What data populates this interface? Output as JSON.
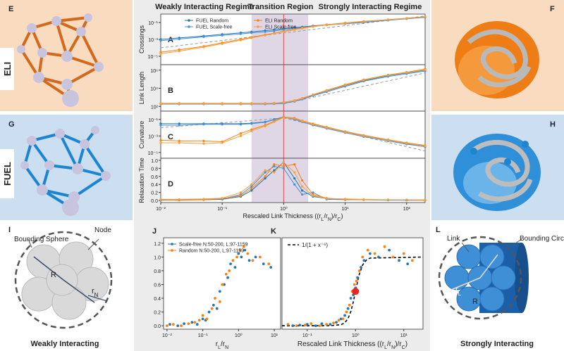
{
  "regimes": [
    "Weakly Interacting Regime",
    "Transition Region",
    "Strongly Interacting Regime"
  ],
  "tabs": [
    "ELI",
    "FUEL"
  ],
  "network_panels": [
    "E",
    "F",
    "G",
    "H"
  ],
  "sphere_diagram": {
    "letter": "I",
    "bounding": "Bounding Sphere",
    "node": "Node",
    "radius": "R",
    "node_radius": [
      "r",
      "N"
    ],
    "caption": "Weakly Interacting"
  },
  "cylinder_diagram": {
    "letter": "L",
    "link": "Link",
    "bounding": "Bounding Circle",
    "link_radius": [
      "r",
      "L"
    ],
    "radius": "R",
    "caption": "Strongly Interacting"
  },
  "chart_data": [
    {
      "type": "line",
      "panel": "A",
      "ylabel": "Crossings",
      "log_x": true,
      "log_y": true,
      "legend": "upper left",
      "xlim": [
        0.01,
        200
      ],
      "ylim": [
        1e-06,
        1
      ],
      "yticks": [
        {
          "value": 0.1,
          "label": "10⁻¹"
        },
        {
          "value": 0.001,
          "label": "10⁻³"
        },
        {
          "value": 1e-05,
          "label": "10⁻⁵"
        }
      ],
      "shaded_span": [
        0.3,
        2.5
      ],
      "vline": 1,
      "x": [
        0.01,
        0.02,
        0.05,
        0.1,
        0.2,
        0.3,
        0.5,
        0.7,
        1,
        1.5,
        2,
        3,
        5,
        10,
        20,
        50,
        100,
        200
      ],
      "series": [
        {
          "name": "FUEL Random",
          "color": "#1f77b4",
          "values": [
            0.001,
            0.0015,
            0.0025,
            0.004,
            0.006,
            0.008,
            0.011,
            0.014,
            0.018,
            0.025,
            0.03,
            0.04,
            0.055,
            0.08,
            0.12,
            0.2,
            0.3,
            0.45
          ]
        },
        {
          "name": "FUEL Scale-free",
          "color": "#4a90d9",
          "values": [
            0.0007,
            0.0011,
            0.002,
            0.003,
            0.0045,
            0.006,
            0.008,
            0.01,
            0.014,
            0.02,
            0.025,
            0.035,
            0.05,
            0.07,
            0.1,
            0.18,
            0.27,
            0.4
          ]
        },
        {
          "name": "ELI Random",
          "color": "#ff7f0e",
          "values": [
            3e-05,
            6e-05,
            0.00015,
            0.0004,
            0.001,
            0.0018,
            0.0035,
            0.0055,
            0.009,
            0.016,
            0.023,
            0.035,
            0.055,
            0.09,
            0.14,
            0.22,
            0.32,
            0.5
          ]
        },
        {
          "name": "ELI Scale-free",
          "color": "#f5a040",
          "values": [
            2e-05,
            4e-05,
            0.00012,
            0.0003,
            0.0008,
            0.0015,
            0.003,
            0.005,
            0.008,
            0.014,
            0.02,
            0.032,
            0.05,
            0.08,
            0.13,
            0.21,
            0.3,
            0.48
          ]
        }
      ],
      "fit": {
        "x": [
          0.01,
          200
        ],
        "values": [
          0.0001,
          0.6
        ]
      }
    },
    {
      "type": "line",
      "panel": "B",
      "ylabel": "Link Length",
      "log_x": true,
      "log_y": true,
      "xlim": [
        0.01,
        200
      ],
      "ylim": [
        30,
        4000000
      ],
      "yticks": [
        {
          "value": 100,
          "label": "10²"
        },
        {
          "value": 10000,
          "label": "10⁴"
        },
        {
          "value": 1000000,
          "label": "10⁶"
        }
      ],
      "shaded_span": [
        0.3,
        2.5
      ],
      "vline": 1,
      "x": [
        0.01,
        0.02,
        0.05,
        0.1,
        0.2,
        0.3,
        0.5,
        0.7,
        1,
        1.5,
        2,
        3,
        5,
        10,
        20,
        50,
        100,
        200
      ],
      "series": [
        {
          "color": "#1f77b4",
          "values": [
            200,
            200,
            200,
            200,
            200,
            200,
            200,
            210,
            250,
            400,
            700,
            1800,
            5000,
            20000,
            70000,
            250000,
            500000,
            1000000
          ]
        },
        {
          "color": "#4a90d9",
          "values": [
            180,
            180,
            180,
            180,
            180,
            180,
            180,
            190,
            220,
            350,
            600,
            1500,
            4000,
            16000,
            60000,
            200000,
            400000,
            800000
          ]
        },
        {
          "color": "#ff7f0e",
          "values": [
            220,
            220,
            220,
            220,
            220,
            220,
            220,
            230,
            280,
            450,
            800,
            2000,
            6000,
            25000,
            90000,
            300000,
            600000,
            1300000
          ]
        },
        {
          "color": "#f5a040",
          "values": [
            200,
            200,
            200,
            200,
            200,
            200,
            210,
            220,
            260,
            420,
            750,
            1900,
            5500,
            22000,
            80000,
            280000,
            550000,
            1100000
          ]
        }
      ],
      "fit": {
        "x": [
          0.01,
          1,
          200
        ],
        "values": [
          200,
          200,
          500000
        ]
      }
    },
    {
      "type": "line",
      "panel": "C",
      "ylabel": "Curvature",
      "log_x": true,
      "log_y": true,
      "xlim": [
        0.01,
        200
      ],
      "ylim": [
        2e-06,
        1
      ],
      "yticks": [
        {
          "value": 0.1,
          "label": "10⁻¹"
        },
        {
          "value": 0.001,
          "label": "10⁻³"
        },
        {
          "value": 1e-05,
          "label": "10⁻⁵"
        }
      ],
      "shaded_span": [
        0.3,
        2.5
      ],
      "vline": 1,
      "x": [
        0.01,
        0.02,
        0.05,
        0.1,
        0.2,
        0.3,
        0.5,
        0.7,
        1,
        1.5,
        2,
        3,
        5,
        10,
        20,
        50,
        100,
        200
      ],
      "series": [
        {
          "color": "#1f77b4",
          "values": [
            0.03,
            0.03,
            0.03,
            0.03,
            0.03,
            0.035,
            0.05,
            0.1,
            0.2,
            0.12,
            0.06,
            0.025,
            0.01,
            0.003,
            0.001,
            0.0003,
            0.00012,
            6e-05
          ]
        },
        {
          "color": "#4a90d9",
          "values": [
            0.02,
            0.02,
            0.025,
            0.025,
            0.025,
            0.03,
            0.045,
            0.09,
            0.18,
            0.1,
            0.05,
            0.02,
            0.008,
            0.0025,
            0.0008,
            0.00025,
            0.0001,
            5e-05
          ]
        },
        {
          "color": "#ff7f0e",
          "values": [
            0.0003,
            0.00025,
            0.00025,
            0.0002,
            0.002,
            0.006,
            0.02,
            0.06,
            0.2,
            0.15,
            0.07,
            0.03,
            0.012,
            0.0035,
            0.0012,
            0.00035,
            0.00015,
            7e-05
          ]
        },
        {
          "color": "#f5a040",
          "values": [
            0.00015,
            0.00015,
            0.00012,
            0.00015,
            0.001,
            0.004,
            0.015,
            0.05,
            0.17,
            0.13,
            0.06,
            0.025,
            0.01,
            0.003,
            0.001,
            0.0003,
            0.00013,
            6e-05
          ]
        }
      ],
      "fit": {
        "x": [
          0.01,
          1,
          200
        ],
        "values": [
          0.01,
          0.15,
          1.5e-05
        ]
      }
    },
    {
      "type": "line",
      "panel": "D",
      "ylabel": "Relaxation Time",
      "log_x": true,
      "log_y": false,
      "xlim": [
        0.01,
        200
      ],
      "ylim": [
        -0.05,
        1.05
      ],
      "xticks": [
        {
          "value": 0.01,
          "label": "10⁻²"
        },
        {
          "value": 0.1,
          "label": "10⁻¹"
        },
        {
          "value": 1,
          "label": "10⁰"
        },
        {
          "value": 10,
          "label": "10¹"
        },
        {
          "value": 100,
          "label": "10²"
        }
      ],
      "yticks": [
        {
          "value": 0,
          "label": "0.0"
        },
        0.2,
        0.4,
        0.6,
        0.8,
        {
          "value": 1,
          "label": "1.0"
        }
      ],
      "xlabel": [
        "Rescaled Link Thickness ((r",
        "L",
        "/r",
        "N",
        ")/r",
        "C",
        ")"
      ],
      "shaded_span": [
        0.3,
        2.5
      ],
      "vline": 1,
      "x": [
        0.01,
        0.02,
        0.05,
        0.1,
        0.2,
        0.3,
        0.5,
        0.7,
        1,
        1.5,
        2,
        3,
        5,
        10,
        20,
        50,
        100,
        200
      ],
      "series": [
        {
          "color": "#1f77b4",
          "values": [
            0.02,
            0.02,
            0.02,
            0.03,
            0.1,
            0.25,
            0.55,
            0.75,
            0.95,
            0.55,
            0.25,
            0.1,
            0.05,
            0.03,
            0.02,
            0.02,
            0.01,
            0.01
          ]
        },
        {
          "color": "#4a90d9",
          "values": [
            0.01,
            0.02,
            0.03,
            0.04,
            0.15,
            0.35,
            0.7,
            0.85,
            0.8,
            0.4,
            0.15,
            0.2,
            0.03,
            0.02,
            0.02,
            0.01,
            0.01,
            0.01
          ]
        },
        {
          "color": "#ff7f0e",
          "values": [
            0.02,
            0.01,
            0.02,
            0.05,
            0.12,
            0.3,
            0.6,
            0.9,
            0.85,
            0.9,
            0.5,
            0.15,
            0.06,
            0.03,
            0.02,
            0.02,
            0.02,
            0.01
          ]
        },
        {
          "color": "#f5a040",
          "values": [
            0.03,
            0.03,
            0.04,
            0.06,
            0.2,
            0.4,
            0.75,
            0.7,
            0.95,
            0.7,
            0.35,
            0.12,
            0.05,
            0.04,
            0.03,
            0.02,
            0.02,
            0.02
          ]
        }
      ]
    },
    {
      "type": "scatter",
      "panel": "J",
      "log_x": true,
      "log_y": false,
      "legend": "upper left",
      "xlim": [
        0.008,
        15
      ],
      "ylim": [
        -0.05,
        1.28
      ],
      "xticks": [
        {
          "value": 0.01,
          "label": "10⁻²"
        },
        {
          "value": 0.1,
          "label": "10⁻¹"
        },
        {
          "value": 1,
          "label": "10⁰"
        },
        {
          "value": 10,
          "label": "10¹"
        }
      ],
      "yticks": [
        {
          "value": 0,
          "label": "0.0"
        },
        0.2,
        0.4,
        0.6,
        0.8,
        {
          "value": 1,
          "label": "1.0"
        },
        1.2
      ],
      "xlabel": [
        "r",
        "L",
        "/r",
        "N"
      ],
      "series": [
        {
          "name": "Scale-free N:50-200, L:97-1159",
          "color": "#1f77b4",
          "x": [
            0.012,
            0.02,
            0.03,
            0.05,
            0.07,
            0.1,
            0.12,
            0.15,
            0.2,
            0.25,
            0.3,
            0.4,
            0.5,
            0.6,
            0.8,
            1,
            1.2,
            1.5,
            2,
            3,
            5,
            8
          ],
          "values": [
            0.02,
            0,
            0.03,
            0.05,
            0.02,
            0.1,
            0.08,
            0.2,
            0.3,
            0.25,
            0.5,
            0.6,
            0.7,
            0.9,
            0.85,
            1.05,
            1,
            1.1,
            0.95,
            1,
            0.9,
            0.85
          ]
        },
        {
          "name": "Random N:50-200, L:97-1159",
          "color": "#ff7f0e",
          "x": [
            0.01,
            0.015,
            0.025,
            0.04,
            0.06,
            0.08,
            0.1,
            0.13,
            0.18,
            0.22,
            0.3,
            0.35,
            0.45,
            0.55,
            0.7,
            0.9,
            1.1,
            1.4,
            1.8,
            2.5,
            4,
            7
          ],
          "values": [
            0,
            0.02,
            0,
            0.03,
            0.05,
            0.08,
            0.15,
            0.1,
            0.25,
            0.4,
            0.35,
            0.6,
            0.75,
            0.8,
            0.95,
            1,
            1.1,
            1.15,
            1.05,
            0.95,
            1,
            0.9
          ]
        }
      ]
    },
    {
      "type": "scatter",
      "panel": "K",
      "log_x": true,
      "log_y": false,
      "legend": "upper left",
      "xlim": [
        0.03,
        25
      ],
      "ylim": [
        -0.05,
        1.28
      ],
      "xticks": [
        {
          "value": 0.1,
          "label": "10⁻¹"
        },
        {
          "value": 1,
          "label": "10⁰"
        },
        {
          "value": 10,
          "label": "10¹"
        }
      ],
      "xlabel": [
        "Rescaled Link Thickness ((r",
        "L",
        "/r",
        "N",
        ")/r",
        "C",
        ")"
      ],
      "series": [
        {
          "color": "#1f77b4",
          "x": [
            0.05,
            0.07,
            0.1,
            0.15,
            0.2,
            0.3,
            0.4,
            0.5,
            0.6,
            0.7,
            0.8,
            0.9,
            1,
            1.1,
            1.3,
            1.5,
            2,
            3,
            5,
            8,
            12
          ],
          "values": [
            0,
            0.01,
            0.02,
            0,
            0.03,
            0.02,
            0.05,
            0.1,
            0.15,
            0.25,
            0.4,
            0.45,
            0.55,
            0.7,
            0.85,
            0.95,
            1.05,
            1,
            1.1,
            0.95,
            0.9
          ]
        },
        {
          "color": "#ff7f0e",
          "x": [
            0.04,
            0.06,
            0.09,
            0.12,
            0.18,
            0.25,
            0.35,
            0.45,
            0.55,
            0.65,
            0.75,
            0.85,
            0.95,
            1.05,
            1.2,
            1.4,
            1.8,
            2.5,
            4,
            6,
            10,
            15
          ],
          "values": [
            0.02,
            0,
            0.01,
            0.03,
            0,
            0.02,
            0.04,
            0.08,
            0.1,
            0.2,
            0.3,
            0.5,
            0.6,
            0.65,
            0.8,
            1,
            1.1,
            1.05,
            1.15,
            1,
            1.05,
            0.95
          ]
        }
      ],
      "fit": {
        "label": "1/(1 + x⁻⁶)",
        "x": [
          0.03,
          0.3,
          0.5,
          0.6,
          0.7,
          0.8,
          0.9,
          1,
          1.1,
          1.2,
          1.4,
          1.7,
          2,
          25
        ],
        "values": [
          0,
          0.001,
          0.015,
          0.044,
          0.105,
          0.208,
          0.347,
          0.5,
          0.639,
          0.749,
          0.883,
          0.96,
          0.984,
          1
        ]
      },
      "highlight": {
        "x": 1,
        "y": 0.5,
        "color": "#e8251f"
      }
    }
  ]
}
